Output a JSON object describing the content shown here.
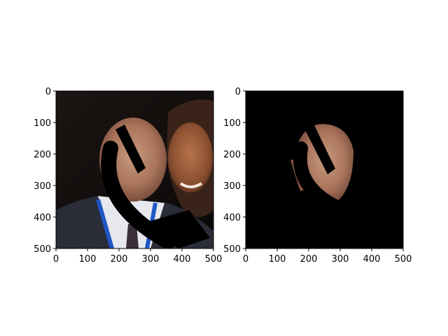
{
  "chart_data": [
    {
      "type": "image",
      "panel": "left",
      "xlim": [
        0,
        500
      ],
      "ylim": [
        500,
        0
      ],
      "xticks": [
        0,
        100,
        200,
        300,
        400,
        500
      ],
      "yticks": [
        0,
        100,
        200,
        300,
        400,
        500
      ],
      "content": "photo-two-people-with-black-occlusion-stroke"
    },
    {
      "type": "image",
      "panel": "right",
      "xlim": [
        0,
        500
      ],
      "ylim": [
        500,
        0
      ],
      "xticks": [
        0,
        100,
        200,
        300,
        400,
        500
      ],
      "yticks": [
        0,
        100,
        200,
        300,
        400,
        500
      ],
      "content": "segmented-face-mask-on-black"
    }
  ]
}
